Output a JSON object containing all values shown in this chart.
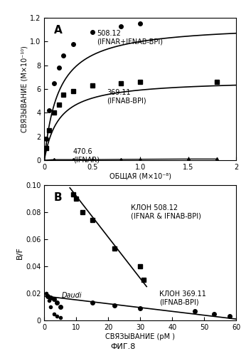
{
  "panel_A": {
    "title": "A",
    "xlabel": "ОБЩАЯ (M×10⁻⁸)",
    "ylabel": "СВЯЗЫВАНИЕ (M×10⁻¹⁰)",
    "xlim": [
      0,
      2.0
    ],
    "ylim": [
      0,
      1.2
    ],
    "yticks": [
      0,
      0.2,
      0.4,
      0.6,
      0.8,
      1.0,
      1.2
    ],
    "xticks": [
      0,
      0.5,
      1.0,
      1.5,
      2.0
    ],
    "curve1": {
      "label": "508.12\n(IFNAR+IFNAB-BPI)",
      "marker": "o",
      "Bmax": 1.15,
      "Kd": 0.15,
      "points_x": [
        0.02,
        0.05,
        0.1,
        0.15,
        0.2,
        0.3,
        0.5,
        0.8,
        1.0
      ],
      "points_y": [
        0.18,
        0.42,
        0.65,
        0.78,
        0.88,
        0.98,
        1.08,
        1.13,
        1.15
      ]
    },
    "curve2": {
      "label": "369.11\n(IFNAB-BPI)",
      "marker": "s",
      "Bmax": 0.68,
      "Kd": 0.15,
      "points_x": [
        0.02,
        0.05,
        0.1,
        0.15,
        0.2,
        0.3,
        0.5,
        0.8,
        1.0,
        1.8
      ],
      "points_y": [
        0.1,
        0.25,
        0.4,
        0.47,
        0.55,
        0.58,
        0.63,
        0.65,
        0.66,
        0.66
      ]
    },
    "curve3": {
      "label": "470.6\n(IFNAR)",
      "marker": "^",
      "points_x": [
        0.0,
        0.1,
        0.3,
        0.5,
        0.8,
        1.0,
        1.5,
        1.8
      ],
      "points_y": [
        0.0,
        0.005,
        0.005,
        0.005,
        0.007,
        0.008,
        0.01,
        0.01
      ]
    }
  },
  "panel_B": {
    "title": "B",
    "xlabel": "СВЯЗЫВАНИЕ (pM )",
    "ylabel": "B/F",
    "xlim": [
      0,
      60
    ],
    "ylim": [
      0,
      0.1
    ],
    "yticks": [
      0,
      0.02,
      0.04,
      0.06,
      0.08,
      0.1
    ],
    "xticks": [
      0,
      10,
      20,
      30,
      40,
      50,
      60
    ],
    "curve1": {
      "label": "КЛОН 508.12\n(IFNAR & IFNAB-BPI)",
      "marker": "s",
      "points_x": [
        9.0,
        10.0,
        12.0,
        15.0,
        22.0,
        30.0,
        31.0
      ],
      "points_y": [
        0.093,
        0.09,
        0.08,
        0.074,
        0.053,
        0.04,
        0.03
      ],
      "line_x": [
        8.0,
        32.0
      ],
      "line_y": [
        0.098,
        0.025
      ]
    },
    "curve2": {
      "label": "КЛОН 369.11\n(IFNAB-BPI)",
      "marker": "o",
      "points_x": [
        1.0,
        2.0,
        3.0,
        4.0,
        5.0,
        15.0,
        22.0,
        30.0,
        47.0,
        53.0,
        58.0
      ],
      "points_y": [
        0.018,
        0.017,
        0.016,
        0.013,
        0.01,
        0.013,
        0.011,
        0.009,
        0.007,
        0.005,
        0.003
      ],
      "line_x": [
        0.0,
        60.0
      ],
      "line_y": [
        0.018,
        0.001
      ]
    },
    "daudi": {
      "label": "Daudi",
      "marker": "o",
      "points_x": [
        0.5,
        1.0,
        1.5,
        2.0,
        3.0,
        4.0,
        5.0
      ],
      "points_y": [
        0.02,
        0.018,
        0.015,
        0.01,
        0.005,
        0.003,
        0.002
      ]
    }
  },
  "fig_label": "ФИГ.8",
  "bg_color": "#ffffff"
}
